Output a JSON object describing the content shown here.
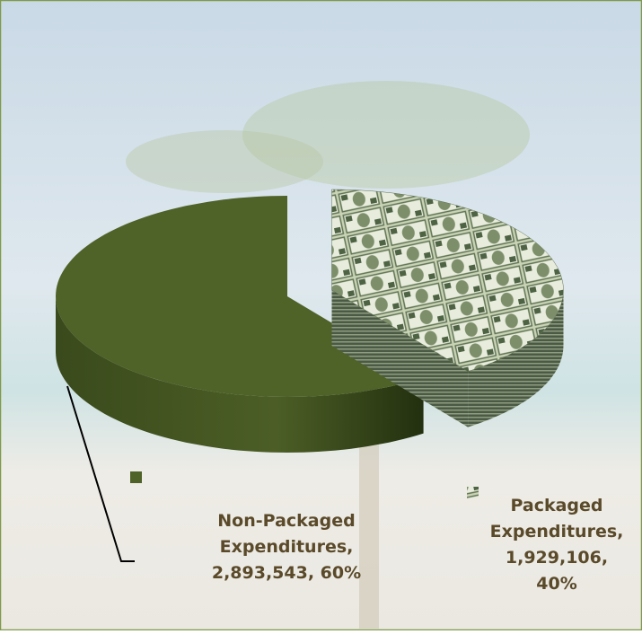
{
  "chart_data": {
    "type": "pie3d",
    "values": [
      2893543,
      1929106
    ],
    "value_labels": [
      "Non-Packaged Expenditures, 2,893,543, 60%",
      "Packaged Expenditures, 1,929,106, 40%"
    ],
    "colors": [
      "#4f6228",
      "#a3b48f"
    ]
  }
}
